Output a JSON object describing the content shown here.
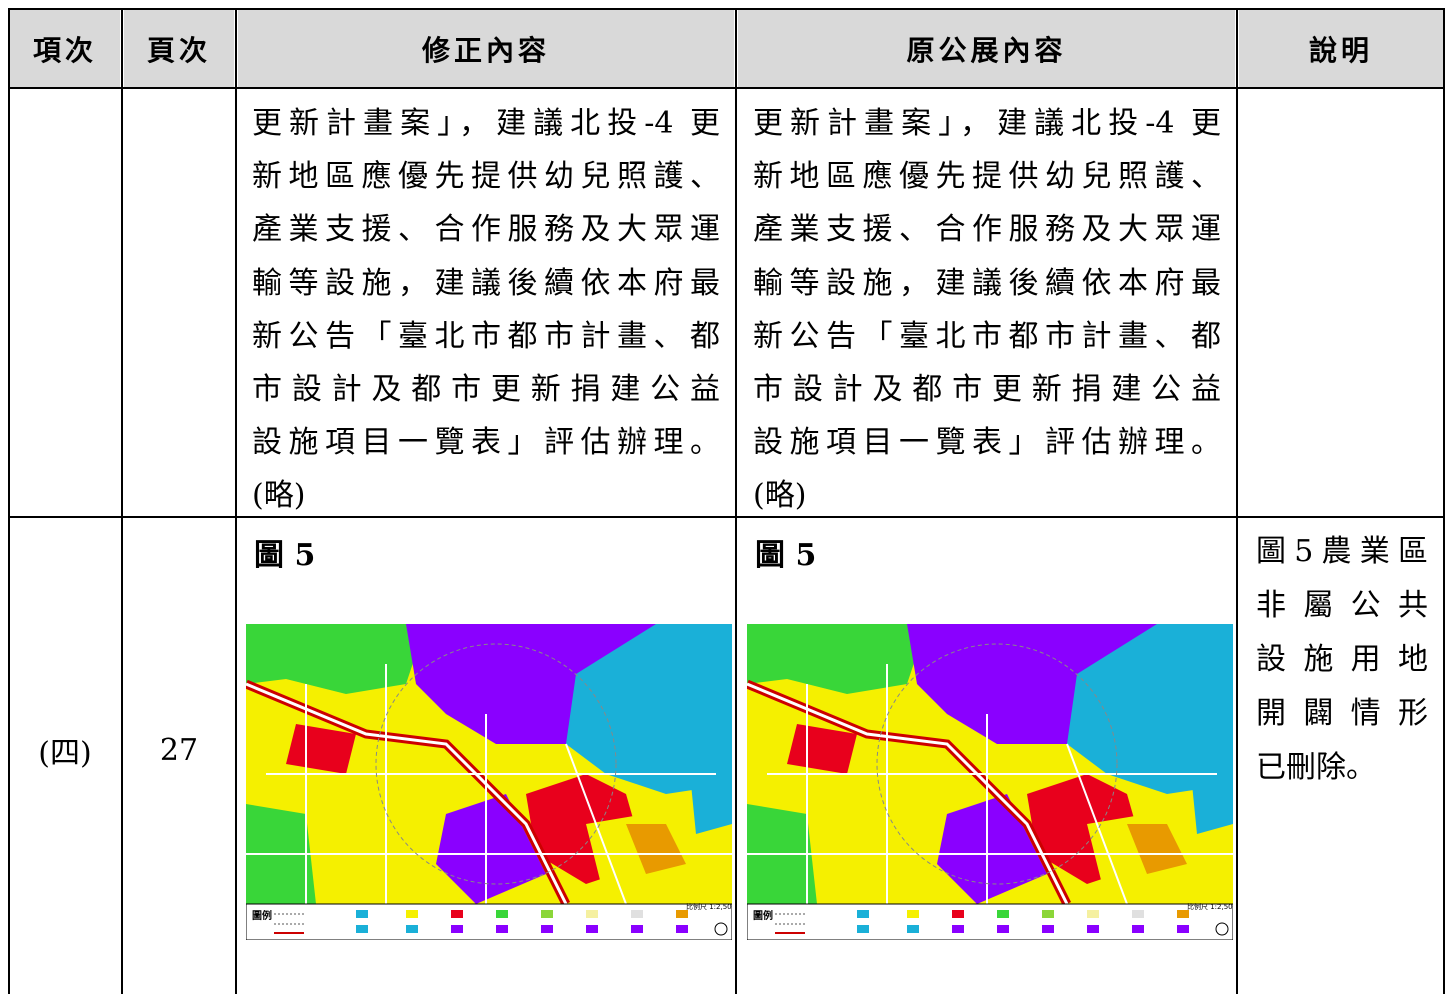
{
  "header": {
    "item": "項次",
    "page": "頁次",
    "revised": "修正內容",
    "original": "原公展內容",
    "note": "說明"
  },
  "row1": {
    "revised_lines": [
      "更新計畫案」，建議北投-4 更",
      "新地區應優先提供幼兒照護、",
      "產業支援、合作服務及大眾運",
      "輸等設施，建議後續依本府最",
      "新公告「臺北市都市計畫、都",
      "市設計及都市更新捐建公益",
      "設施項目一覽表」評估辦理。",
      "(略)"
    ],
    "original_lines": [
      "更新計畫案」，建議北投-4 更",
      "新地區應優先提供幼兒照護、",
      "產業支援、合作服務及大眾運",
      "輸等設施，建議後續依本府最",
      "新公告「臺北市都市計畫、都",
      "市設計及都市更新捐建公益",
      "設施項目一覽表」評估辦理。",
      "(略)"
    ]
  },
  "row2": {
    "item": "(四)",
    "page": "27",
    "revised_title": "圖 5",
    "original_title": "圖 5",
    "note_lines": [
      "圖5農業區",
      "非屬公共",
      "設施用地",
      "開闢情形",
      "已刪除。"
    ],
    "map_legend_title": "圖例",
    "map_scale": "比例尺 1:2,500"
  },
  "colors": {
    "header_bg": "#d9d9d9",
    "residential": "#f5f000",
    "commercial": "#e8001c",
    "park": "#39d639",
    "school": "#8a00ff",
    "water": "#1ab0d8",
    "road": "#ffffff"
  }
}
